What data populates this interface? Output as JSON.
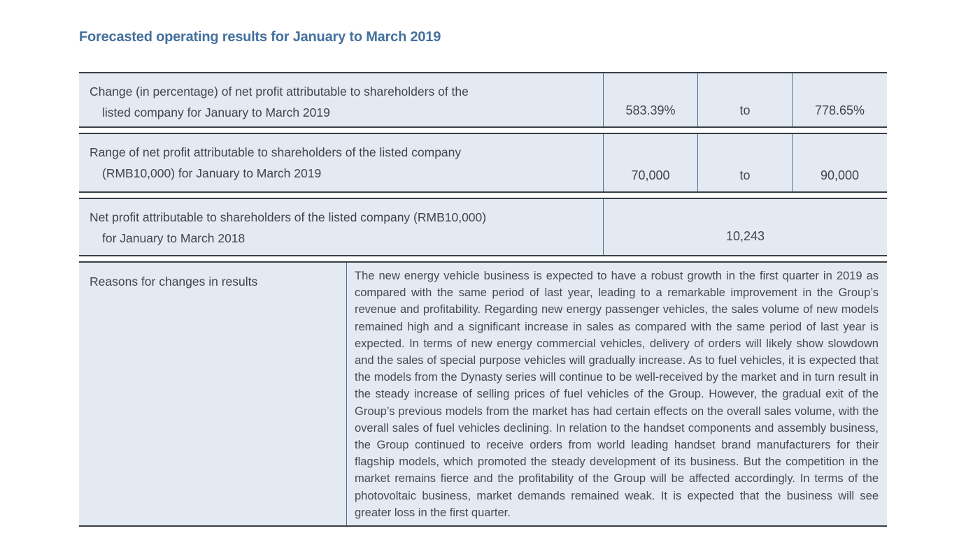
{
  "page": {
    "title": "Forecasted operating results for January to March 2019"
  },
  "colors": {
    "cell_background": "#e4eaf2",
    "title_blue": "#44709d",
    "body_text": "#3f454c",
    "horizontal_border": "#3a3e45",
    "vertical_divider": "#4c6f94"
  },
  "table": {
    "rows": [
      {
        "label_line1": "Change (in percentage) of net profit attributable to shareholders of the",
        "label_line2": "listed company for January to March 2019",
        "value_low": "583.39%",
        "connector": "to",
        "value_high": "778.65%"
      },
      {
        "label_line1": "Range of net profit attributable to shareholders of the listed company",
        "label_line2": "(RMB10,000) for January to March 2019",
        "value_low": "70,000",
        "connector": "to",
        "value_high": "90,000"
      },
      {
        "label_line1": "Net profit attributable to shareholders of the listed company (RMB10,000)",
        "label_line2": "for January to March 2018",
        "value": "10,243"
      },
      {
        "label": "Reasons for changes in results",
        "text": "The new energy vehicle business is expected to have a robust growth in the first quarter in 2019 as compared with the same period of last year, leading to a remarkable improvement in the Group’s revenue and profitability. Regarding new energy passenger vehicles, the sales volume of new models remained high and a significant increase in sales as compared with the same period of last year is expected. In terms of new energy commercial vehicles, delivery of orders will likely show slowdown and the sales of special purpose vehicles will gradually increase. As to fuel vehicles, it is expected that the models from the Dynasty series will continue to be well-received by the market and in turn result in the steady increase of selling prices of fuel vehicles of the Group. However, the gradual exit of the Group’s previous models from the market has had certain effects on the overall sales volume, with the overall sales of fuel vehicles declining. In relation to the handset components and assembly business, the Group continued to receive orders from world leading handset brand manufacturers for their flagship models, which promoted the steady development of its business. But the competition in the market remains fierce and the profitability of the Group will be affected accordingly. In terms of the photovoltaic business, market demands remained weak. It is expected that the business will see greater loss in the first quarter."
      }
    ]
  }
}
